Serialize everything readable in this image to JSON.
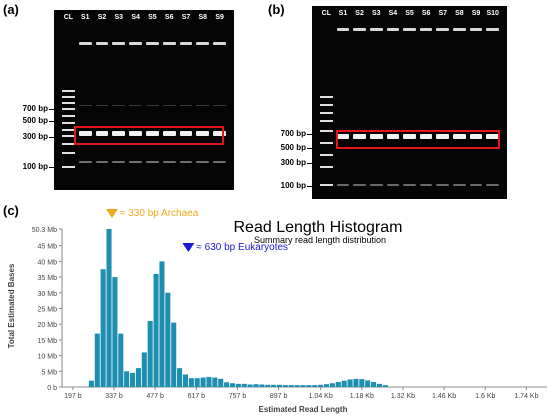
{
  "panel_a": {
    "label": "(a)",
    "lanes": [
      "CL",
      "S1",
      "S2",
      "S3",
      "S4",
      "S5",
      "S6",
      "S7",
      "S8",
      "S9"
    ],
    "markers": [
      "700 bp",
      "500 bp",
      "300 bp",
      "100 bp"
    ]
  },
  "panel_b": {
    "label": "(b)",
    "lanes": [
      "CL",
      "S1",
      "S2",
      "S3",
      "S4",
      "S5",
      "S6",
      "S7",
      "S8",
      "S9",
      "S10"
    ],
    "markers": [
      "700 bp",
      "500 bp",
      "300 bp",
      "100 bp"
    ]
  },
  "panel_c": {
    "label": "(c)"
  },
  "colors": {
    "bar": "#1e8fb0",
    "highlight_box": "#e8141c",
    "archaea_marker": "#f0a81c",
    "eukaryote_marker": "#1a1ad8"
  },
  "chart_data": {
    "type": "bar",
    "title": "Read Length Histogram",
    "subtitle": "Summary read length distribution",
    "xlabel": "Estimated Read Length",
    "ylabel": "Total Estimated Bases",
    "x_tick_labels": [
      "197 b",
      "337 b",
      "477 b",
      "617 b",
      "757 b",
      "897 b",
      "1.04 Kb",
      "1.18 Kb",
      "1.32 Kb",
      "1.46 Kb",
      "1.6 Kb",
      "1.74 Kb"
    ],
    "y_tick_labels": [
      "0 b",
      "5 Mb",
      "10 Mb",
      "15 Mb",
      "20 Mb",
      "25 Mb",
      "30 Mb",
      "35 Mb",
      "40 Mb",
      "45 Mb",
      "50.3 Mb"
    ],
    "ylim": [
      0,
      50.3
    ],
    "bin_width_b": 20,
    "bin_start_b": 250,
    "values": [
      2.0,
      17.0,
      37.5,
      50.3,
      35.0,
      17.0,
      5.0,
      4.5,
      6.0,
      11.0,
      21.0,
      36.0,
      40.0,
      30.0,
      20.5,
      6.0,
      4.0,
      2.8,
      2.8,
      3.0,
      3.2,
      3.0,
      2.6,
      1.5,
      1.2,
      1.0,
      1.0,
      0.8,
      0.9,
      0.8,
      0.7,
      0.7,
      0.7,
      0.6,
      0.6,
      0.6,
      0.6,
      0.6,
      0.6,
      0.7,
      0.9,
      1.2,
      1.6,
      2.0,
      2.4,
      2.6,
      2.5,
      2.1,
      1.6,
      1.0,
      0.6
    ],
    "annotations": [
      {
        "text": "≈ 330 bp Archaea",
        "x": 330
      },
      {
        "text": "≈ 630 bp Eukaryotes",
        "x": 590
      }
    ],
    "grid": false
  }
}
